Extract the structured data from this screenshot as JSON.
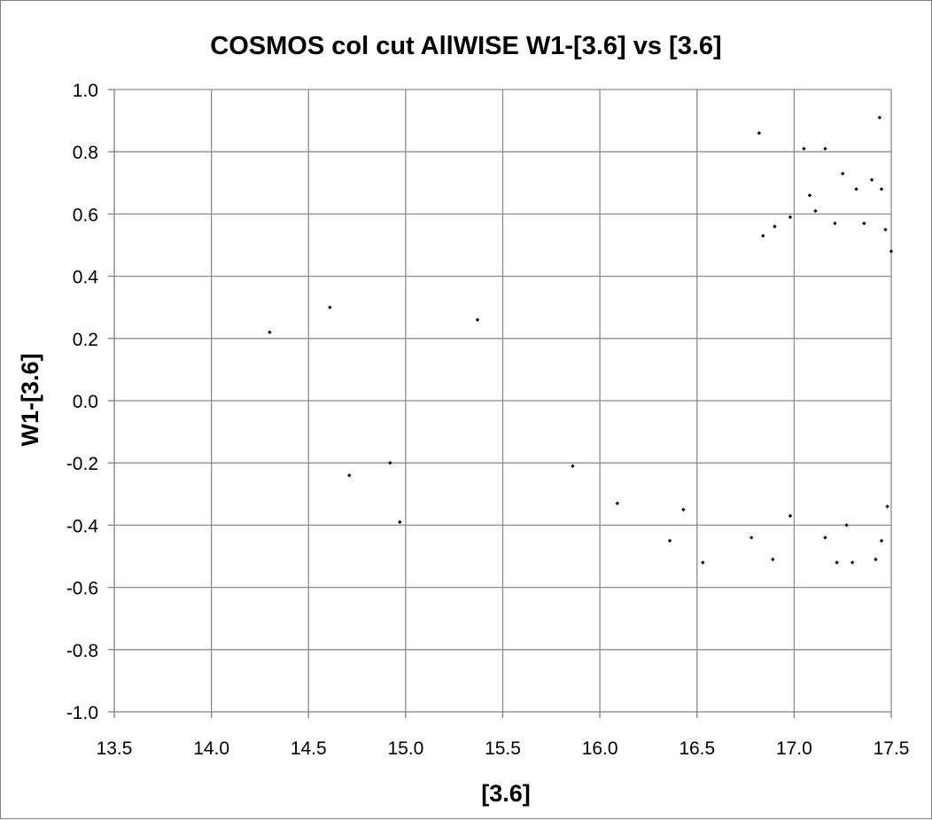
{
  "chart_data": {
    "type": "scatter",
    "title": "COSMOS col cut AllWISE W1-[3.6] vs [3.6]",
    "xlabel": "[3.6]",
    "ylabel": "W1-[3.6]",
    "xlim": [
      13.5,
      17.5
    ],
    "ylim": [
      -1.0,
      1.0
    ],
    "xticks": [
      "13.5",
      "14.0",
      "14.5",
      "15.0",
      "15.5",
      "16.0",
      "16.5",
      "17.0",
      "17.5"
    ],
    "yticks": [
      "1.0",
      "0.8",
      "0.6",
      "0.4",
      "0.2",
      "0.0",
      "-0.2",
      "-0.4",
      "-0.6",
      "-0.8",
      "-1.0"
    ],
    "grid": true,
    "marker_color": "#000000",
    "series": [
      {
        "points": [
          [
            14.3,
            0.22
          ],
          [
            14.61,
            0.3
          ],
          [
            14.71,
            -0.24
          ],
          [
            14.92,
            -0.2
          ],
          [
            14.97,
            -0.39
          ],
          [
            15.37,
            0.26
          ],
          [
            15.86,
            -0.21
          ],
          [
            16.09,
            -0.33
          ],
          [
            16.36,
            -0.45
          ],
          [
            16.53,
            -0.52
          ],
          [
            16.43,
            -0.35
          ],
          [
            16.82,
            0.86
          ],
          [
            17.05,
            0.81
          ],
          [
            17.16,
            0.81
          ],
          [
            17.44,
            0.91
          ],
          [
            17.25,
            0.73
          ],
          [
            17.4,
            0.71
          ],
          [
            17.32,
            0.68
          ],
          [
            17.45,
            0.68
          ],
          [
            17.08,
            0.66
          ],
          [
            17.11,
            0.61
          ],
          [
            16.98,
            0.59
          ],
          [
            16.9,
            0.56
          ],
          [
            16.84,
            0.53
          ],
          [
            16.78,
            -0.44
          ],
          [
            16.89,
            -0.51
          ],
          [
            17.16,
            -0.44
          ],
          [
            17.22,
            -0.52
          ],
          [
            17.3,
            -0.52
          ],
          [
            17.42,
            -0.51
          ],
          [
            17.45,
            -0.45
          ],
          [
            17.27,
            -0.4
          ],
          [
            17.48,
            -0.34
          ],
          [
            16.98,
            -0.37
          ],
          [
            17.5,
            0.48
          ],
          [
            17.47,
            0.55
          ],
          [
            17.36,
            0.57
          ],
          [
            17.21,
            0.57
          ]
        ]
      }
    ]
  }
}
